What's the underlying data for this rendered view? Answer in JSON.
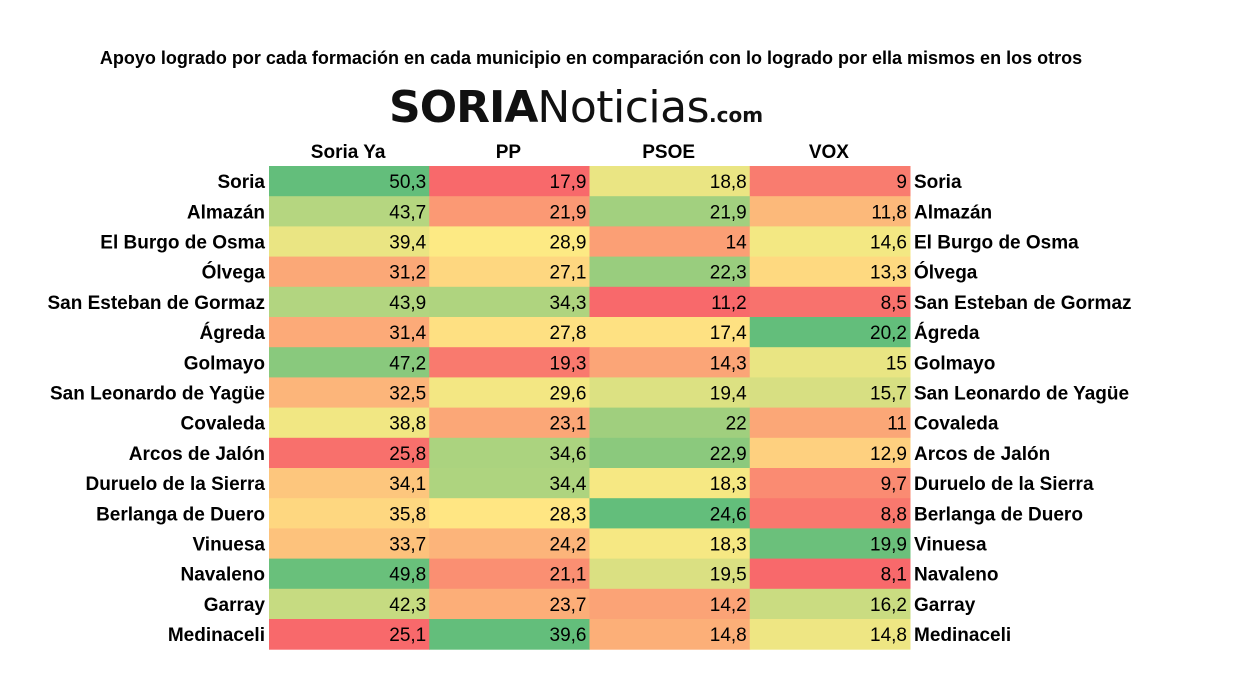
{
  "title": "Apoyo logrado por cada formación en cada municipio en comparación con lo logrado por ella mismos en los otros",
  "logo": {
    "part1": "SORIA",
    "part2": "Noticias",
    "part3": ".com"
  },
  "chart_data": {
    "type": "heatmap",
    "columns": [
      "Soria Ya",
      "PP",
      "PSOE",
      "VOX"
    ],
    "rows": [
      "Soria",
      "Almazán",
      "El Burgo de Osma",
      "Ólvega",
      "San Esteban de Gormaz",
      "Ágreda",
      "Golmayo",
      "San Leonardo de Yagüe",
      "Covaleda",
      "Arcos de Jalón",
      "Duruelo de la Sierra",
      "Berlanga de Duero",
      "Vinuesa",
      "Navaleno",
      "Garray",
      "Medinaceli"
    ],
    "values": [
      [
        50.3,
        17.9,
        18.8,
        9
      ],
      [
        43.7,
        21.9,
        21.9,
        11.8
      ],
      [
        39.4,
        28.9,
        14,
        14.6
      ],
      [
        31.2,
        27.1,
        22.3,
        13.3
      ],
      [
        43.9,
        34.3,
        11.2,
        8.5
      ],
      [
        31.4,
        27.8,
        17.4,
        20.2
      ],
      [
        47.2,
        19.3,
        14.3,
        15
      ],
      [
        32.5,
        29.6,
        19.4,
        15.7
      ],
      [
        38.8,
        23.1,
        22,
        11
      ],
      [
        25.8,
        34.6,
        22.9,
        12.9
      ],
      [
        34.1,
        34.4,
        18.3,
        9.7
      ],
      [
        35.8,
        28.3,
        24.6,
        8.8
      ],
      [
        33.7,
        24.2,
        18.3,
        19.9
      ],
      [
        49.8,
        21.1,
        19.5,
        8.1
      ],
      [
        42.3,
        23.7,
        14.2,
        16.2
      ],
      [
        25.1,
        39.6,
        14.8,
        14.8
      ]
    ],
    "display_values": [
      [
        "50,3",
        "17,9",
        "18,8",
        "9"
      ],
      [
        "43,7",
        "21,9",
        "21,9",
        "11,8"
      ],
      [
        "39,4",
        "28,9",
        "14",
        "14,6"
      ],
      [
        "31,2",
        "27,1",
        "22,3",
        "13,3"
      ],
      [
        "43,9",
        "34,3",
        "11,2",
        "8,5"
      ],
      [
        "31,4",
        "27,8",
        "17,4",
        "20,2"
      ],
      [
        "47,2",
        "19,3",
        "14,3",
        "15"
      ],
      [
        "32,5",
        "29,6",
        "19,4",
        "15,7"
      ],
      [
        "38,8",
        "23,1",
        "22",
        "11"
      ],
      [
        "25,8",
        "34,6",
        "22,9",
        "12,9"
      ],
      [
        "34,1",
        "34,4",
        "18,3",
        "9,7"
      ],
      [
        "35,8",
        "28,3",
        "24,6",
        "8,8"
      ],
      [
        "33,7",
        "24,2",
        "18,3",
        "19,9"
      ],
      [
        "49,8",
        "21,1",
        "19,5",
        "8,1"
      ],
      [
        "42,3",
        "23,7",
        "14,2",
        "16,2"
      ],
      [
        "25,1",
        "39,6",
        "14,8",
        "14,8"
      ]
    ],
    "color_scale": {
      "min_color": "#f8696b",
      "mid_color": "#ffeb84",
      "max_color": "#63be7b",
      "scope": "per-column"
    },
    "row_labels_both_sides": true
  }
}
